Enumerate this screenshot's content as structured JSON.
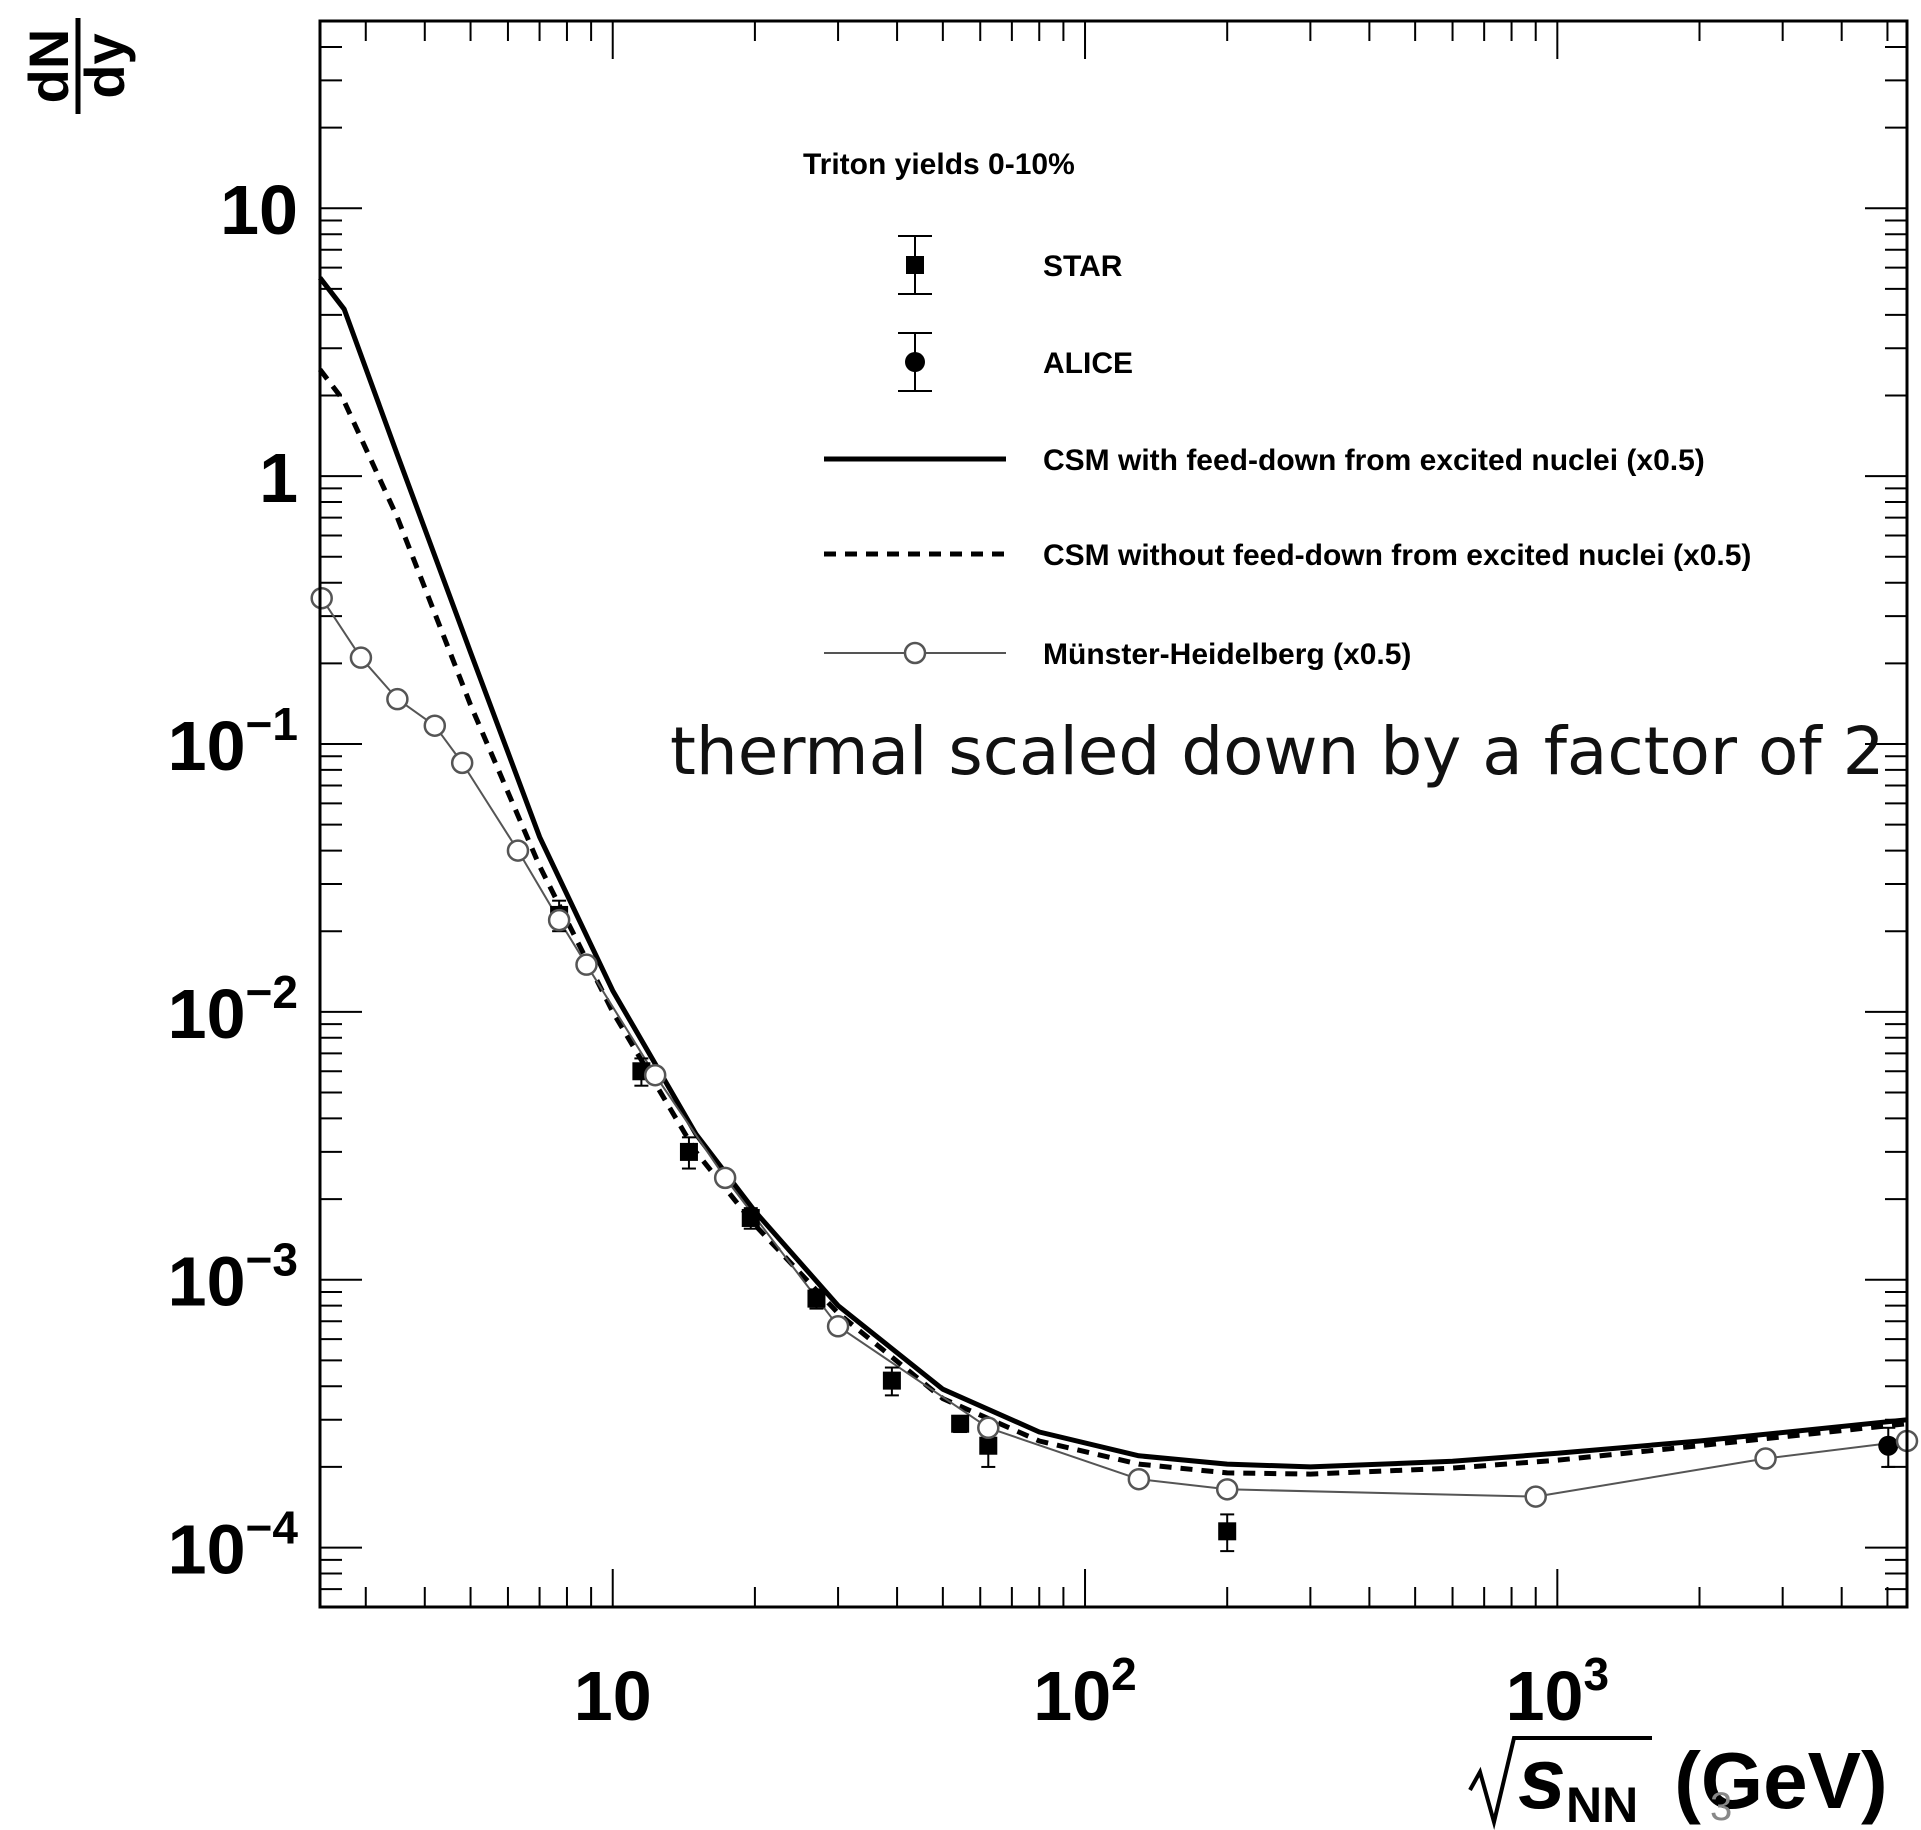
{
  "chart_data": {
    "type": "line",
    "legend_title": "Triton yields 0-10%",
    "annotation": "thermal scaled down by a factor of 2",
    "xscale": "log",
    "yscale": "log",
    "xlim": [
      2.4,
      5500
    ],
    "ylim": [
      6e-05,
      50
    ],
    "x_tick_labels": [
      {
        "v": 10,
        "base": "10",
        "exp": ""
      },
      {
        "v": 100,
        "base": "10",
        "exp": "2"
      },
      {
        "v": 1000,
        "base": "10",
        "exp": "3"
      }
    ],
    "y_tick_labels": [
      {
        "v": 10,
        "base": "10",
        "exp": ""
      },
      {
        "v": 1,
        "base": "1",
        "exp": ""
      },
      {
        "v": 0.1,
        "base": "10",
        "exp": "−1"
      },
      {
        "v": 0.01,
        "base": "10",
        "exp": "−2"
      },
      {
        "v": 0.001,
        "base": "10",
        "exp": "−3"
      },
      {
        "v": 0.0001,
        "base": "10",
        "exp": "−4"
      }
    ],
    "ylabel_top": "dN",
    "ylabel_bottom": "dy",
    "xlabel_main": "s",
    "xlabel_sub": "NN",
    "xlabel_unit": " (GeV)",
    "series": [
      {
        "name": "STAR",
        "kind": "marker",
        "marker": "square",
        "points": [
          {
            "x": 7.7,
            "y": 0.023,
            "err": 0.003
          },
          {
            "x": 11.5,
            "y": 0.006,
            "err": 0.0007
          },
          {
            "x": 14.5,
            "y": 0.003,
            "err": 0.0004
          },
          {
            "x": 19.6,
            "y": 0.0017,
            "err": 0.00015
          },
          {
            "x": 27,
            "y": 0.00085,
            "err": 7e-05
          },
          {
            "x": 39,
            "y": 0.00042,
            "err": 5e-05
          },
          {
            "x": 54.4,
            "y": 0.00029,
            "err": 2e-05
          },
          {
            "x": 62.4,
            "y": 0.00024,
            "err": 4e-05
          },
          {
            "x": 200,
            "y": 0.000115,
            "err": 1.8e-05
          }
        ]
      },
      {
        "name": "ALICE",
        "kind": "marker",
        "marker": "circle",
        "points": [
          {
            "x": 5020,
            "y": 0.00024,
            "err": 4e-05
          }
        ]
      },
      {
        "name": "CSM with feed-down from excited nuclei (x0.5)",
        "kind": "line",
        "dash": "solid",
        "points": [
          {
            "x": 2.4,
            "y": 5.5
          },
          {
            "x": 2.7,
            "y": 4.2
          },
          {
            "x": 3.5,
            "y": 1.2
          },
          {
            "x": 5,
            "y": 0.22
          },
          {
            "x": 7,
            "y": 0.045
          },
          {
            "x": 10,
            "y": 0.012
          },
          {
            "x": 15,
            "y": 0.0035
          },
          {
            "x": 20,
            "y": 0.0018
          },
          {
            "x": 30,
            "y": 0.0008
          },
          {
            "x": 50,
            "y": 0.00039
          },
          {
            "x": 80,
            "y": 0.00027
          },
          {
            "x": 130,
            "y": 0.00022
          },
          {
            "x": 200,
            "y": 0.000205
          },
          {
            "x": 300,
            "y": 0.0002
          },
          {
            "x": 600,
            "y": 0.00021
          },
          {
            "x": 1000,
            "y": 0.000225
          },
          {
            "x": 2000,
            "y": 0.00025
          },
          {
            "x": 5500,
            "y": 0.0003
          }
        ]
      },
      {
        "name": "CSM without feed-down from excited nuclei (x0.5)",
        "kind": "line",
        "dash": "dashed",
        "points": [
          {
            "x": 2.4,
            "y": 2.5
          },
          {
            "x": 2.7,
            "y": 1.9
          },
          {
            "x": 3.5,
            "y": 0.7
          },
          {
            "x": 5,
            "y": 0.14
          },
          {
            "x": 7,
            "y": 0.035
          },
          {
            "x": 10,
            "y": 0.01
          },
          {
            "x": 15,
            "y": 0.003
          },
          {
            "x": 20,
            "y": 0.0016
          },
          {
            "x": 30,
            "y": 0.00075
          },
          {
            "x": 50,
            "y": 0.00036
          },
          {
            "x": 80,
            "y": 0.00025
          },
          {
            "x": 130,
            "y": 0.000205
          },
          {
            "x": 200,
            "y": 0.00019
          },
          {
            "x": 300,
            "y": 0.000188
          },
          {
            "x": 600,
            "y": 0.000198
          },
          {
            "x": 1000,
            "y": 0.000212
          },
          {
            "x": 2000,
            "y": 0.00024
          },
          {
            "x": 5500,
            "y": 0.00029
          }
        ]
      },
      {
        "name": "Münster-Heidelberg (x0.5)",
        "kind": "line-marker",
        "marker": "open-circle",
        "points": [
          {
            "x": 2.42,
            "y": 0.35
          },
          {
            "x": 2.93,
            "y": 0.21
          },
          {
            "x": 3.5,
            "y": 0.147
          },
          {
            "x": 4.2,
            "y": 0.117
          },
          {
            "x": 4.8,
            "y": 0.085
          },
          {
            "x": 6.3,
            "y": 0.04
          },
          {
            "x": 7.7,
            "y": 0.022
          },
          {
            "x": 8.8,
            "y": 0.015
          },
          {
            "x": 12.3,
            "y": 0.0058
          },
          {
            "x": 17.3,
            "y": 0.0024
          },
          {
            "x": 30,
            "y": 0.00067
          },
          {
            "x": 62.4,
            "y": 0.00028
          },
          {
            "x": 130,
            "y": 0.00018
          },
          {
            "x": 200,
            "y": 0.000165
          },
          {
            "x": 900,
            "y": 0.000155
          },
          {
            "x": 2760,
            "y": 0.000215
          },
          {
            "x": 5500,
            "y": 0.00025
          }
        ]
      }
    ]
  },
  "page_number": "3"
}
